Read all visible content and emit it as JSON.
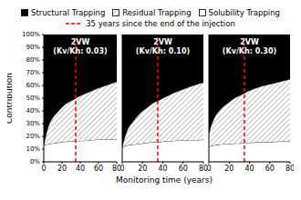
{
  "chart_data": [
    {
      "type": "area",
      "stacked": true,
      "grid": true,
      "title": "2VW",
      "subtitle": "(Kv/Kh: 0.03)",
      "y_label": "Contribution",
      "annotations": [
        {
          "x": 35,
          "text": "35 years since the end of the injection",
          "color": "#ff0000",
          "line_style": "dashed"
        }
      ],
      "x": [
        0,
        2,
        5,
        10,
        15,
        20,
        25,
        30,
        35,
        40,
        50,
        60,
        70,
        80
      ],
      "xlim": [
        0,
        80
      ],
      "xticks": [
        0,
        20,
        40,
        60,
        80
      ],
      "ylim": [
        0,
        100
      ],
      "yticks": [
        {
          "value": 0,
          "label": "0%"
        },
        {
          "value": 10,
          "label": "10%"
        },
        {
          "value": 20,
          "label": "20%"
        },
        {
          "value": 30,
          "label": "30%"
        },
        {
          "value": 40,
          "label": "40%"
        },
        {
          "value": 50,
          "label": "50%"
        },
        {
          "value": 60,
          "label": "60%"
        },
        {
          "value": 70,
          "label": "70%"
        },
        {
          "value": 80,
          "label": "80%"
        },
        {
          "value": 90,
          "label": "90%"
        },
        {
          "value": 100,
          "label": "100%"
        }
      ],
      "series": [
        {
          "name": "Structural Trapping",
          "color": "#000000",
          "values": [
            86.5,
            80,
            72,
            65,
            61,
            57,
            54,
            52,
            50,
            48,
            45,
            42,
            39.5,
            37
          ]
        },
        {
          "name": "Residual Trapping",
          "color": "#808080",
          "marker": "hatch",
          "values": [
            0.5,
            6.5,
            14,
            20.5,
            24,
            27.5,
            30,
            32,
            33.5,
            35.5,
            38,
            40.5,
            43,
            45
          ]
        },
        {
          "name": "Solubility Trapping",
          "color": "#ffffff",
          "values": [
            13,
            13.5,
            14,
            14.5,
            15,
            15.5,
            16,
            16,
            16.5,
            16.5,
            17,
            17.5,
            17.5,
            18
          ]
        }
      ]
    },
    {
      "type": "area",
      "stacked": true,
      "grid": true,
      "title": "2VW",
      "subtitle": "(Kv/Kh: 0.10)",
      "x_label": "Monitoring time (years)",
      "tick_labels": "x",
      "annotations": [
        {
          "x": 35,
          "color": "#ff0000",
          "line_style": "dashed"
        }
      ],
      "x": [
        0,
        2,
        5,
        10,
        15,
        20,
        25,
        30,
        35,
        40,
        50,
        60,
        70,
        80
      ],
      "xlim": [
        0,
        80
      ],
      "xticks": [
        0,
        20,
        40,
        60,
        80
      ],
      "ylim": [
        0,
        100
      ],
      "yticks": [
        0,
        10,
        20,
        30,
        40,
        50,
        60,
        70,
        80,
        90,
        100
      ],
      "series": [
        {
          "name": "Structural Trapping",
          "color": "#000000",
          "values": [
            88,
            82,
            75,
            69,
            64,
            60,
            57,
            54,
            52,
            50,
            46,
            43,
            40,
            37.5
          ]
        },
        {
          "name": "Residual Trapping",
          "color": "#808080",
          "marker": "hatch",
          "values": [
            1,
            6,
            12,
            17.5,
            22,
            25.5,
            28,
            30.5,
            32.5,
            34,
            37.5,
            40,
            43,
            45
          ]
        },
        {
          "name": "Solubility Trapping",
          "color": "#ffffff",
          "values": [
            11,
            12,
            13,
            13.5,
            14,
            14.5,
            15,
            15.5,
            15.5,
            16,
            16.5,
            17,
            17,
            17.5
          ]
        }
      ]
    },
    {
      "type": "area",
      "stacked": true,
      "grid": true,
      "title": "2VW",
      "subtitle": "(Kv/Kh: 0.30)",
      "tick_labels": "x",
      "annotations": [
        {
          "x": 35,
          "color": "#ff0000",
          "line_style": "dashed"
        }
      ],
      "x": [
        0,
        2,
        5,
        10,
        15,
        20,
        25,
        30,
        35,
        40,
        50,
        60,
        70,
        80
      ],
      "xlim": [
        0,
        80
      ],
      "xticks": [
        0,
        20,
        40,
        60,
        80
      ],
      "ylim": [
        0,
        100
      ],
      "yticks": [
        0,
        10,
        20,
        30,
        40,
        50,
        60,
        70,
        80,
        90,
        100
      ],
      "series": [
        {
          "name": "Structural Trapping",
          "color": "#000000",
          "values": [
            78,
            72,
            66,
            60,
            56,
            53,
            50,
            48,
            46,
            44,
            41,
            39,
            37,
            35
          ]
        },
        {
          "name": "Residual Trapping",
          "color": "#808080",
          "marker": "hatch",
          "values": [
            10,
            15.5,
            21,
            26.5,
            30,
            33,
            35.5,
            37.5,
            39,
            41,
            43.5,
            45.5,
            47,
            49
          ]
        },
        {
          "name": "Solubility Trapping",
          "color": "#ffffff",
          "values": [
            12,
            12.5,
            13,
            13.5,
            14,
            14,
            14.5,
            14.5,
            15,
            15,
            15.5,
            15.5,
            16,
            16
          ]
        }
      ]
    }
  ]
}
